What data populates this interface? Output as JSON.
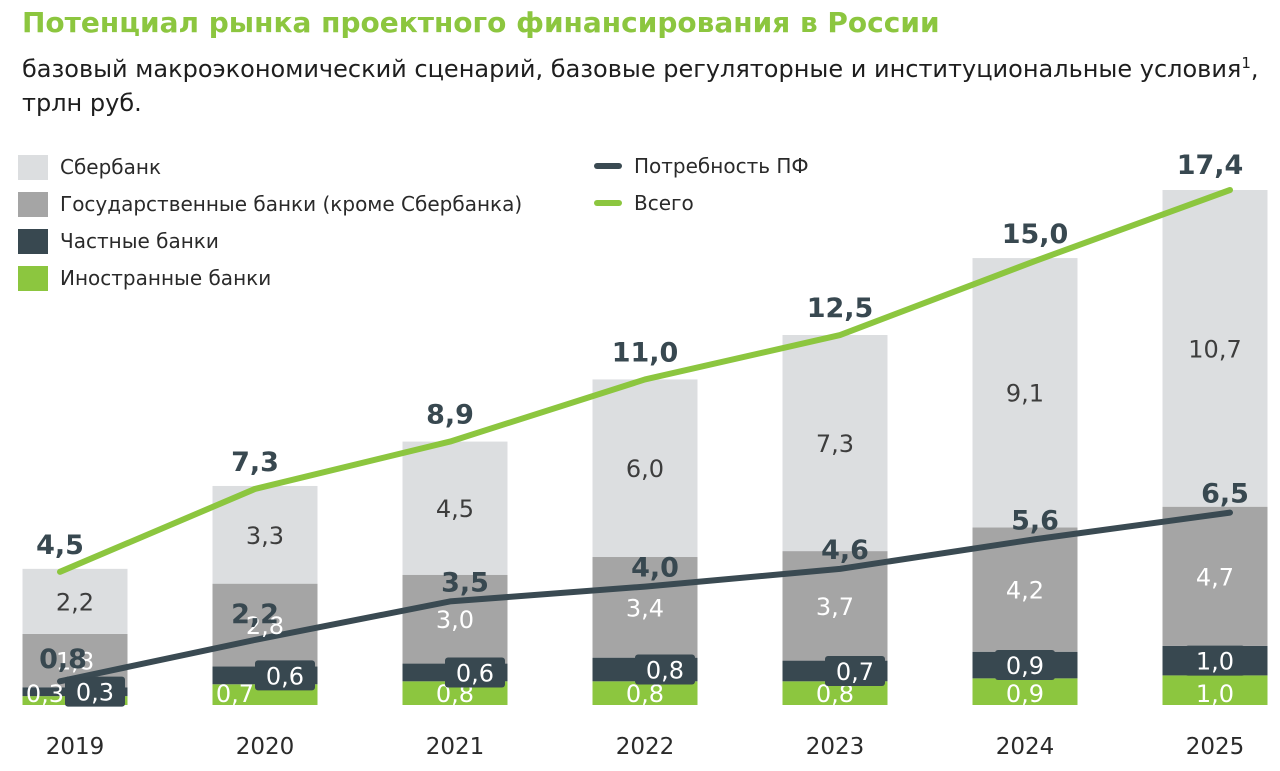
{
  "header": {
    "title": "Потенциал рынка проектного финансирования в России",
    "subtitle": "базовый макроэкономический сценарий, базовые регуляторные и институциональные условия",
    "subtitle_sup": "1",
    "subtitle_tail": ",",
    "units": "трлн руб."
  },
  "legend": {
    "sber": "Сбербанк",
    "state": "Государственные банки (кроме Сбербанка)",
    "private": "Частные банки",
    "foreign": "Иностранные банки",
    "need": "Потребность ПФ",
    "total": "Всего"
  },
  "colors": {
    "title": "#8cc63f",
    "sber": "#dcdee0",
    "state": "#a5a5a5",
    "private": "#384850",
    "foreign": "#8cc63f",
    "need_line": "#3a4a52",
    "total_line": "#8cc63f",
    "value_text_dark": "#384850",
    "value_text_light": "#ffffff"
  },
  "chart_data": {
    "type": "bar",
    "stacked": true,
    "categories": [
      "2019",
      "2020",
      "2021",
      "2022",
      "2023",
      "2024",
      "2025"
    ],
    "series": [
      {
        "name": "Иностранные банки",
        "values": [
          0.3,
          0.7,
          0.8,
          0.8,
          0.8,
          0.9,
          1.0
        ],
        "labels": [
          "0,3",
          "0,7",
          "0,8",
          "0,8",
          "0,8",
          "0,9",
          "1,0"
        ]
      },
      {
        "name": "Частные банки",
        "values": [
          0.3,
          0.6,
          0.6,
          0.8,
          0.7,
          0.9,
          1.0
        ],
        "labels": [
          "0,3",
          "0,6",
          "0,6",
          "0,8",
          "0,7",
          "0,9",
          "1,0"
        ]
      },
      {
        "name": "Государственные банки (кроме Сбербанка)",
        "values": [
          1.8,
          2.8,
          3.0,
          3.4,
          3.7,
          4.2,
          4.7
        ],
        "labels": [
          "1,8",
          "2,8",
          "3,0",
          "3,4",
          "3,7",
          "4,2",
          "4,7"
        ]
      },
      {
        "name": "Сбербанк",
        "values": [
          2.2,
          3.3,
          4.5,
          6.0,
          7.3,
          9.1,
          10.7
        ],
        "labels": [
          "2,2",
          "3,3",
          "4,5",
          "6,0",
          "7,3",
          "9,1",
          "10,7"
        ]
      }
    ],
    "lines": [
      {
        "name": "Всего",
        "values": [
          4.5,
          7.3,
          8.9,
          11.0,
          12.5,
          15.0,
          17.4
        ],
        "labels": [
          "4,5",
          "7,3",
          "8,9",
          "11,0",
          "12,5",
          "15,0",
          "17,4"
        ]
      },
      {
        "name": "Потребность ПФ",
        "values": [
          0.8,
          2.2,
          3.5,
          4.0,
          4.6,
          5.6,
          6.5
        ],
        "labels": [
          "0,8",
          "2,2",
          "3,5",
          "4,0",
          "4,6",
          "5,6",
          "6,5"
        ]
      }
    ],
    "ylim": [
      0,
      17.4
    ],
    "grid": false,
    "legend_position": "top-left"
  }
}
